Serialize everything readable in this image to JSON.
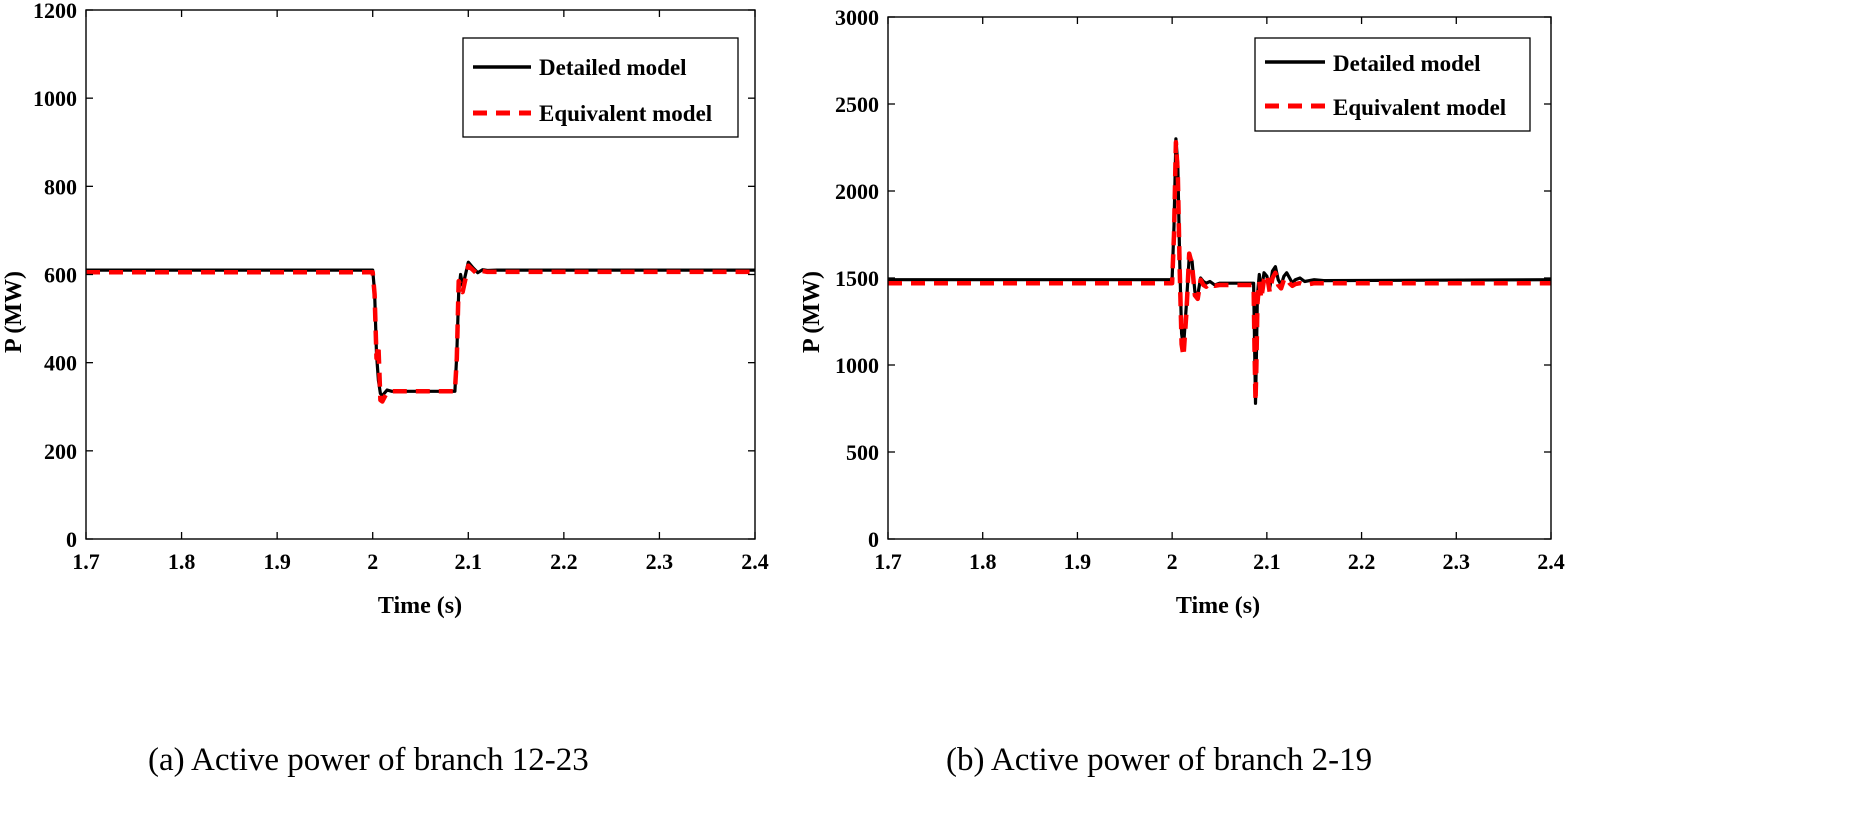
{
  "chart_data": [
    {
      "type": "line",
      "caption": "(a) Active power of branch 12-23",
      "xlabel": "Time (s)",
      "ylabel": "P (MW)",
      "xlim": [
        1.7,
        2.4
      ],
      "ylim": [
        0,
        1200
      ],
      "xticks": [
        1.7,
        1.8,
        1.9,
        2,
        2.1,
        2.2,
        2.3,
        2.4
      ],
      "xtick_labels": [
        "1.7",
        "1.8",
        "1.9",
        "2",
        "2.1",
        "2.2",
        "2.3",
        "2.4"
      ],
      "yticks": [
        0,
        200,
        400,
        600,
        800,
        1000,
        1200
      ],
      "ytick_labels": [
        "0",
        "200",
        "400",
        "600",
        "800",
        "1000",
        "1200"
      ],
      "legend": [
        "Detailed model",
        "Equivalent model"
      ],
      "legend_position": "top-right",
      "series": [
        {
          "name": "Detailed model",
          "color": "#000000",
          "style": "solid",
          "x": [
            1.7,
            2.0,
            2.002,
            2.004,
            2.006,
            2.008,
            2.01,
            2.015,
            2.02,
            2.05,
            2.086,
            2.088,
            2.09,
            2.092,
            2.094,
            2.096,
            2.1,
            2.105,
            2.11,
            2.115,
            2.12,
            2.13,
            2.14,
            2.4
          ],
          "y": [
            610,
            610,
            560,
            420,
            360,
            330,
            325,
            338,
            335,
            335,
            335,
            420,
            560,
            600,
            575,
            590,
            628,
            615,
            604,
            611,
            609,
            610,
            610,
            610
          ]
        },
        {
          "name": "Equivalent model",
          "color": "#ff0000",
          "style": "dashed",
          "x": [
            1.7,
            2.0,
            2.002,
            2.004,
            2.006,
            2.008,
            2.01,
            2.015,
            2.02,
            2.05,
            2.086,
            2.088,
            2.09,
            2.092,
            2.094,
            2.096,
            2.1,
            2.105,
            2.11,
            2.115,
            2.12,
            2.13,
            2.14,
            2.4
          ],
          "y": [
            605,
            605,
            555,
            410,
            440,
            315,
            312,
            333,
            335,
            335,
            335,
            410,
            585,
            575,
            560,
            580,
            620,
            610,
            600,
            608,
            606,
            606,
            606,
            606
          ]
        }
      ]
    },
    {
      "type": "line",
      "caption": "(b) Active power of branch 2-19",
      "xlabel": "Time (s)",
      "ylabel": "P (MW)",
      "xlim": [
        1.7,
        2.4
      ],
      "ylim": [
        0,
        3000
      ],
      "xticks": [
        1.7,
        1.8,
        1.9,
        2,
        2.1,
        2.2,
        2.3,
        2.4
      ],
      "xtick_labels": [
        "1.7",
        "1.8",
        "1.9",
        "2",
        "2.1",
        "2.2",
        "2.3",
        "2.4"
      ],
      "yticks": [
        0,
        500,
        1000,
        1500,
        2000,
        2500,
        3000
      ],
      "ytick_labels": [
        "0",
        "500",
        "1000",
        "1500",
        "2000",
        "2500",
        "3000"
      ],
      "legend": [
        "Detailed model",
        "Equivalent model"
      ],
      "legend_position": "top-right",
      "series": [
        {
          "name": "Detailed model",
          "color": "#000000",
          "style": "solid",
          "x": [
            1.7,
            2.0,
            2.002,
            2.004,
            2.006,
            2.008,
            2.01,
            2.012,
            2.015,
            2.018,
            2.021,
            2.024,
            2.027,
            2.03,
            2.033,
            2.036,
            2.04,
            2.045,
            2.05,
            2.06,
            2.086,
            2.087,
            2.088,
            2.089,
            2.09,
            2.092,
            2.094,
            2.097,
            2.1,
            2.103,
            2.106,
            2.109,
            2.112,
            2.115,
            2.118,
            2.121,
            2.124,
            2.127,
            2.13,
            2.135,
            2.14,
            2.15,
            2.16,
            2.4
          ],
          "y": [
            1490,
            1490,
            1800,
            2300,
            2150,
            1600,
            1180,
            1100,
            1350,
            1620,
            1600,
            1420,
            1400,
            1500,
            1480,
            1470,
            1480,
            1460,
            1470,
            1470,
            1470,
            1150,
            780,
            1050,
            1400,
            1520,
            1420,
            1530,
            1510,
            1440,
            1540,
            1565,
            1490,
            1460,
            1510,
            1530,
            1500,
            1470,
            1490,
            1500,
            1480,
            1490,
            1485,
            1490
          ]
        },
        {
          "name": "Equivalent model",
          "color": "#ff0000",
          "style": "dashed",
          "x": [
            1.7,
            2.0,
            2.002,
            2.004,
            2.006,
            2.008,
            2.01,
            2.012,
            2.015,
            2.018,
            2.021,
            2.024,
            2.027,
            2.03,
            2.033,
            2.036,
            2.04,
            2.045,
            2.05,
            2.06,
            2.086,
            2.087,
            2.088,
            2.089,
            2.09,
            2.092,
            2.094,
            2.097,
            2.1,
            2.103,
            2.106,
            2.109,
            2.112,
            2.115,
            2.118,
            2.121,
            2.124,
            2.127,
            2.13,
            2.135,
            2.14,
            2.15,
            2.16,
            2.4
          ],
          "y": [
            1470,
            1470,
            1750,
            2280,
            2100,
            1550,
            1120,
            1050,
            1300,
            1640,
            1580,
            1400,
            1380,
            1490,
            1460,
            1450,
            1470,
            1455,
            1460,
            1460,
            1460,
            1100,
            790,
            1000,
            1350,
            1480,
            1380,
            1490,
            1520,
            1420,
            1500,
            1530,
            1460,
            1440,
            1490,
            1500,
            1470,
            1455,
            1465,
            1470,
            1460,
            1470,
            1470,
            1470
          ]
        }
      ]
    }
  ]
}
